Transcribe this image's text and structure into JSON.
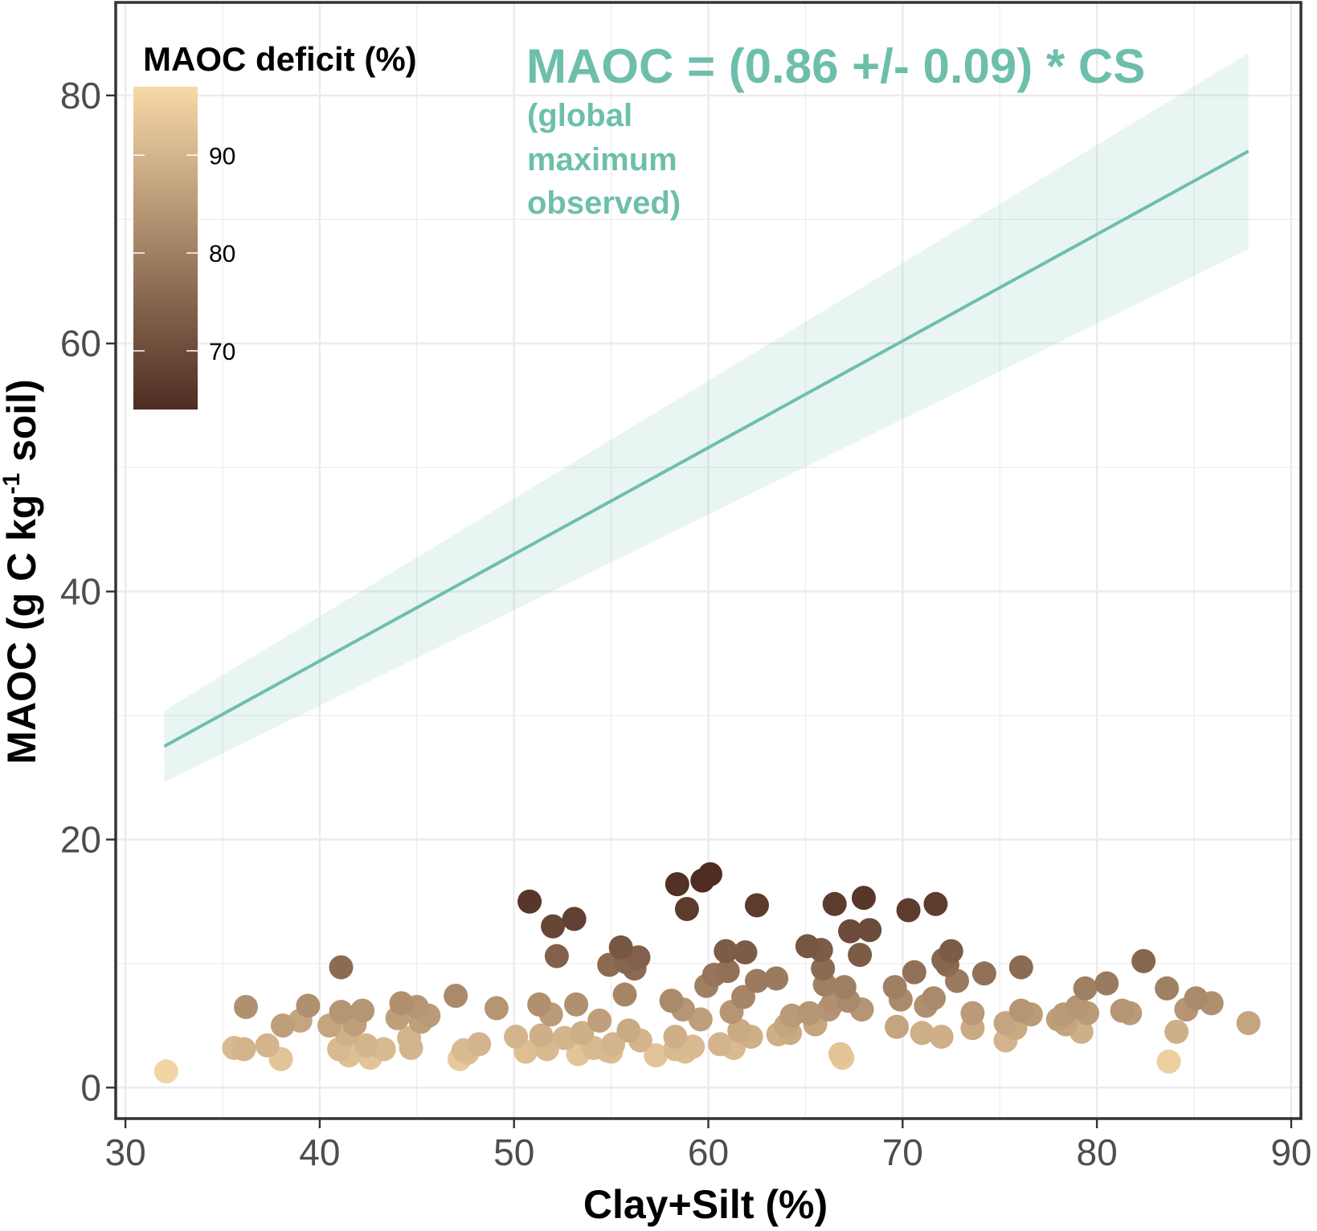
{
  "chart_data": {
    "type": "scatter",
    "xlabel": "Clay+Silt (%)",
    "ylabel": "MAOC (g C kg-1 soil)",
    "ylabel_parts": {
      "before": "MAOC (g C kg",
      "sup": "-1",
      "after": " soil)"
    },
    "xlim": [
      29.5,
      90.5
    ],
    "ylim": [
      -2.5,
      87.5
    ],
    "x_ticks": [
      30,
      40,
      50,
      60,
      70,
      80,
      90
    ],
    "y_ticks": [
      0,
      20,
      40,
      60,
      80
    ],
    "grid": true,
    "fit_line": {
      "equation": "MAOC = (0.86 +/- 0.09) * CS",
      "note_lines": [
        "(global",
        "maximum",
        "observed)"
      ],
      "slope": 0.86,
      "slope_se": 0.09,
      "x_range": [
        32,
        87.8
      ],
      "color": "#6dbfab"
    },
    "legend": {
      "title": "MAOC deficit (%)",
      "position": "top-left",
      "range": [
        64,
        97
      ],
      "ticks": [
        70,
        80,
        90
      ],
      "color_low": "#4e2c22",
      "color_high": "#f8d9a8"
    },
    "points": [
      [
        32.1,
        1.3,
        96
      ],
      [
        36.2,
        6.5,
        83
      ],
      [
        35.6,
        3.2,
        91
      ],
      [
        36.1,
        3.1,
        90
      ],
      [
        37.3,
        3.4,
        90
      ],
      [
        38.0,
        2.3,
        93
      ],
      [
        38.1,
        5.0,
        86
      ],
      [
        39.0,
        5.4,
        87
      ],
      [
        39.4,
        6.6,
        83
      ],
      [
        40.5,
        5.0,
        87
      ],
      [
        41.0,
        3.1,
        91
      ],
      [
        41.1,
        9.7,
        76
      ],
      [
        41.1,
        6.1,
        84
      ],
      [
        41.4,
        4.3,
        89
      ],
      [
        41.5,
        2.6,
        92
      ],
      [
        41.8,
        5.1,
        86
      ],
      [
        42.2,
        6.2,
        84
      ],
      [
        42.4,
        3.4,
        90
      ],
      [
        42.6,
        2.4,
        93
      ],
      [
        43.3,
        3.1,
        91
      ],
      [
        44.0,
        5.6,
        86
      ],
      [
        44.2,
        6.8,
        83
      ],
      [
        44.6,
        4.0,
        90
      ],
      [
        44.7,
        3.2,
        90
      ],
      [
        45.0,
        6.5,
        84
      ],
      [
        45.2,
        5.3,
        86
      ],
      [
        45.6,
        5.8,
        85
      ],
      [
        47.0,
        7.4,
        82
      ],
      [
        47.2,
        2.3,
        94
      ],
      [
        47.4,
        3.0,
        91
      ],
      [
        47.6,
        2.8,
        92
      ],
      [
        48.2,
        3.5,
        90
      ],
      [
        49.1,
        6.4,
        84
      ],
      [
        50.1,
        4.1,
        90
      ],
      [
        50.6,
        2.9,
        92
      ],
      [
        50.8,
        15.0,
        66
      ],
      [
        51.3,
        6.7,
        83
      ],
      [
        51.4,
        4.2,
        89
      ],
      [
        51.7,
        3.1,
        91
      ],
      [
        51.9,
        5.9,
        85
      ],
      [
        52.0,
        13.0,
        69
      ],
      [
        52.2,
        10.6,
        74
      ],
      [
        52.6,
        4.0,
        90
      ],
      [
        53.1,
        13.6,
        68
      ],
      [
        53.2,
        6.7,
        83
      ],
      [
        53.3,
        2.7,
        93
      ],
      [
        53.5,
        4.4,
        89
      ],
      [
        54.1,
        3.2,
        91
      ],
      [
        54.4,
        5.4,
        86
      ],
      [
        54.8,
        3.0,
        91
      ],
      [
        54.9,
        9.9,
        76
      ],
      [
        55.0,
        2.9,
        92
      ],
      [
        55.1,
        3.5,
        90
      ],
      [
        55.5,
        11.3,
        72
      ],
      [
        55.7,
        7.5,
        81
      ],
      [
        55.8,
        10.1,
        75
      ],
      [
        55.9,
        4.6,
        88
      ],
      [
        56.2,
        9.6,
        76
      ],
      [
        56.4,
        10.5,
        74
      ],
      [
        56.5,
        3.8,
        90
      ],
      [
        57.3,
        2.6,
        93
      ],
      [
        58.1,
        7.0,
        82
      ],
      [
        58.3,
        4.1,
        89
      ],
      [
        58.3,
        3.1,
        91
      ],
      [
        58.4,
        16.4,
        65
      ],
      [
        58.7,
        6.3,
        84
      ],
      [
        58.9,
        14.4,
        67
      ],
      [
        58.8,
        2.9,
        92
      ],
      [
        59.2,
        3.3,
        91
      ],
      [
        59.6,
        5.5,
        86
      ],
      [
        59.7,
        16.7,
        64
      ],
      [
        59.9,
        8.2,
        80
      ],
      [
        60.1,
        17.2,
        64
      ],
      [
        60.3,
        9.1,
        78
      ],
      [
        60.6,
        3.5,
        90
      ],
      [
        60.9,
        11.0,
        73
      ],
      [
        61.0,
        9.4,
        77
      ],
      [
        61.2,
        6.1,
        84
      ],
      [
        61.3,
        3.2,
        91
      ],
      [
        61.6,
        4.6,
        88
      ],
      [
        61.8,
        7.3,
        81
      ],
      [
        61.9,
        10.9,
        73
      ],
      [
        62.2,
        4.1,
        89
      ],
      [
        62.5,
        8.6,
        79
      ],
      [
        62.5,
        14.7,
        67
      ],
      [
        63.5,
        8.8,
        79
      ],
      [
        63.6,
        4.3,
        89
      ],
      [
        64.0,
        5.0,
        87
      ],
      [
        64.2,
        4.4,
        88
      ],
      [
        64.3,
        5.8,
        85
      ],
      [
        65.1,
        11.4,
        72
      ],
      [
        65.2,
        6.0,
        84
      ],
      [
        65.5,
        5.1,
        87
      ],
      [
        65.8,
        11.1,
        73
      ],
      [
        65.9,
        9.6,
        76
      ],
      [
        66.0,
        8.3,
        80
      ],
      [
        66.2,
        6.3,
        84
      ],
      [
        66.4,
        6.8,
        83
      ],
      [
        66.5,
        14.8,
        67
      ],
      [
        66.8,
        2.7,
        93
      ],
      [
        66.9,
        2.4,
        94
      ],
      [
        67.0,
        8.1,
        80
      ],
      [
        67.2,
        7.0,
        82
      ],
      [
        67.3,
        12.6,
        70
      ],
      [
        67.8,
        10.7,
        73
      ],
      [
        67.9,
        6.3,
        84
      ],
      [
        68.0,
        15.3,
        66
      ],
      [
        68.3,
        12.7,
        70
      ],
      [
        69.7,
        4.9,
        87
      ],
      [
        69.6,
        8.1,
        80
      ],
      [
        69.9,
        7.1,
        82
      ],
      [
        70.3,
        14.3,
        67
      ],
      [
        70.6,
        9.3,
        77
      ],
      [
        71.0,
        4.4,
        89
      ],
      [
        71.2,
        6.6,
        83
      ],
      [
        71.6,
        7.2,
        82
      ],
      [
        71.7,
        14.8,
        67
      ],
      [
        72.0,
        4.1,
        89
      ],
      [
        72.1,
        10.3,
        75
      ],
      [
        72.3,
        9.9,
        76
      ],
      [
        72.5,
        11.0,
        73
      ],
      [
        72.8,
        8.6,
        79
      ],
      [
        73.6,
        6.0,
        85
      ],
      [
        73.6,
        4.8,
        88
      ],
      [
        74.2,
        9.2,
        77
      ],
      [
        75.3,
        5.2,
        87
      ],
      [
        75.3,
        3.8,
        90
      ],
      [
        75.8,
        4.8,
        88
      ],
      [
        76.1,
        9.7,
        76
      ],
      [
        76.1,
        6.2,
        84
      ],
      [
        76.6,
        5.9,
        85
      ],
      [
        78.0,
        5.5,
        86
      ],
      [
        78.3,
        5.9,
        85
      ],
      [
        78.4,
        5.1,
        87
      ],
      [
        79.0,
        6.5,
        84
      ],
      [
        79.2,
        4.5,
        89
      ],
      [
        79.4,
        8.0,
        80
      ],
      [
        79.5,
        6.0,
        85
      ],
      [
        80.5,
        8.4,
        79
      ],
      [
        81.3,
        6.2,
        84
      ],
      [
        81.7,
        6.0,
        85
      ],
      [
        82.4,
        10.2,
        75
      ],
      [
        83.6,
        8.0,
        80
      ],
      [
        83.7,
        2.1,
        95
      ],
      [
        84.1,
        4.5,
        89
      ],
      [
        84.6,
        6.3,
        84
      ],
      [
        85.1,
        7.2,
        82
      ],
      [
        85.9,
        6.8,
        83
      ],
      [
        87.8,
        5.2,
        87
      ]
    ]
  }
}
